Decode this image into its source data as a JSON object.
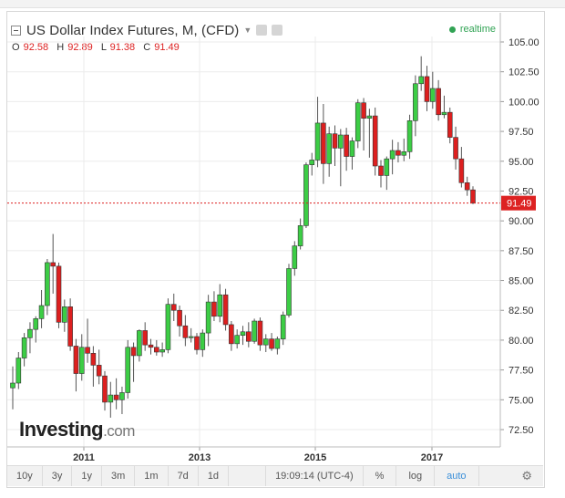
{
  "header": {
    "title": "US Dollar Index Futures, M, (CFD)",
    "realtime_label": "realtime"
  },
  "ohlc": {
    "o_label": "O",
    "o": "92.58",
    "h_label": "H",
    "h": "92.89",
    "l_label": "L",
    "l": "91.38",
    "c_label": "C",
    "c": "91.49"
  },
  "logo": {
    "main": "Investing",
    "suffix": ".com"
  },
  "chart_data": {
    "type": "candlestick",
    "y_ticks": [
      "105.00",
      "102.50",
      "100.00",
      "97.50",
      "95.00",
      "92.50",
      "90.00",
      "87.50",
      "85.00",
      "82.50",
      "80.00",
      "77.50",
      "75.00",
      "72.50"
    ],
    "ylim": [
      71.5,
      106.5
    ],
    "x_ticks": [
      "2011",
      "2013",
      "2015",
      "2017"
    ],
    "last_price_label": "91.49",
    "last_price": 91.49,
    "colors": {
      "up": "#3ccd45",
      "down": "#dd1f1f"
    },
    "candles": [
      [
        76.0,
        77.8,
        74.2,
        76.4
      ],
      [
        76.4,
        79.0,
        75.9,
        78.5
      ],
      [
        78.5,
        80.6,
        77.8,
        80.2
      ],
      [
        80.2,
        81.5,
        78.9,
        80.9
      ],
      [
        80.9,
        82.0,
        79.8,
        81.8
      ],
      [
        81.8,
        84.2,
        81.0,
        82.9
      ],
      [
        82.9,
        86.8,
        82.1,
        86.5
      ],
      [
        86.5,
        88.9,
        83.9,
        86.2
      ],
      [
        86.2,
        86.5,
        81.0,
        81.5
      ],
      [
        81.5,
        83.4,
        80.7,
        82.8
      ],
      [
        82.8,
        83.5,
        79.1,
        79.5
      ],
      [
        79.5,
        80.1,
        75.7,
        77.2
      ],
      [
        77.2,
        80.5,
        76.6,
        79.4
      ],
      [
        79.4,
        81.8,
        78.1,
        78.9
      ],
      [
        78.9,
        79.5,
        76.1,
        77.9
      ],
      [
        77.9,
        79.2,
        76.3,
        77.0
      ],
      [
        77.0,
        77.4,
        74.1,
        74.8
      ],
      [
        74.8,
        76.5,
        73.5,
        75.4
      ],
      [
        75.4,
        76.8,
        74.2,
        75.0
      ],
      [
        75.0,
        76.1,
        73.8,
        75.6
      ],
      [
        75.6,
        80.0,
        75.1,
        79.4
      ],
      [
        79.4,
        79.8,
        76.5,
        78.7
      ],
      [
        78.7,
        80.9,
        78.2,
        80.8
      ],
      [
        80.8,
        81.5,
        79.1,
        79.6
      ],
      [
        79.6,
        80.1,
        78.8,
        79.4
      ],
      [
        79.4,
        80.0,
        78.7,
        79.0
      ],
      [
        79.0,
        79.8,
        78.6,
        79.2
      ],
      [
        79.2,
        83.5,
        78.9,
        83.0
      ],
      [
        83.0,
        83.9,
        81.6,
        82.5
      ],
      [
        82.5,
        82.9,
        80.3,
        81.2
      ],
      [
        81.2,
        82.1,
        79.5,
        80.2
      ],
      [
        80.2,
        81.0,
        79.8,
        80.3
      ],
      [
        80.3,
        80.6,
        78.8,
        79.2
      ],
      [
        79.2,
        80.9,
        78.6,
        80.6
      ],
      [
        80.6,
        83.8,
        79.5,
        83.2
      ],
      [
        83.2,
        84.1,
        81.6,
        82.0
      ],
      [
        82.0,
        84.7,
        81.5,
        83.8
      ],
      [
        83.8,
        84.3,
        80.8,
        81.3
      ],
      [
        81.3,
        81.6,
        79.1,
        79.7
      ],
      [
        79.7,
        80.9,
        79.3,
        80.4
      ],
      [
        80.4,
        81.2,
        79.6,
        80.7
      ],
      [
        80.7,
        81.5,
        79.4,
        79.9
      ],
      [
        79.9,
        81.8,
        79.7,
        81.6
      ],
      [
        81.6,
        81.9,
        79.1,
        79.6
      ],
      [
        79.6,
        80.5,
        79.0,
        80.1
      ],
      [
        80.1,
        80.6,
        79.1,
        79.3
      ],
      [
        79.3,
        80.3,
        78.8,
        80.1
      ],
      [
        80.1,
        82.4,
        79.6,
        82.1
      ],
      [
        82.1,
        86.4,
        81.9,
        86.0
      ],
      [
        86.0,
        88.3,
        85.4,
        87.9
      ],
      [
        87.9,
        90.2,
        87.6,
        89.6
      ],
      [
        89.6,
        94.9,
        89.4,
        94.7
      ],
      [
        94.7,
        95.7,
        93.8,
        95.1
      ],
      [
        95.1,
        100.4,
        94.5,
        98.2
      ],
      [
        98.2,
        99.8,
        93.1,
        94.8
      ],
      [
        94.8,
        97.9,
        93.7,
        97.3
      ],
      [
        97.3,
        98.0,
        94.6,
        96.1
      ],
      [
        96.1,
        97.7,
        92.9,
        97.2
      ],
      [
        97.2,
        97.8,
        94.2,
        95.4
      ],
      [
        95.4,
        97.0,
        94.3,
        96.7
      ],
      [
        96.7,
        100.2,
        96.1,
        99.9
      ],
      [
        99.9,
        100.3,
        95.9,
        98.6
      ],
      [
        98.6,
        99.4,
        95.3,
        98.8
      ],
      [
        98.8,
        99.5,
        93.8,
        94.6
      ],
      [
        94.6,
        95.1,
        92.8,
        93.8
      ],
      [
        93.8,
        95.4,
        92.6,
        95.2
      ],
      [
        95.2,
        96.8,
        93.9,
        95.9
      ],
      [
        95.9,
        96.6,
        94.9,
        95.5
      ],
      [
        95.5,
        96.9,
        95.0,
        95.8
      ],
      [
        95.8,
        98.9,
        95.2,
        98.4
      ],
      [
        98.4,
        102.2,
        97.1,
        101.5
      ],
      [
        101.5,
        103.8,
        100.9,
        102.1
      ],
      [
        102.1,
        103.0,
        99.2,
        100.0
      ],
      [
        100.0,
        102.5,
        99.4,
        101.1
      ],
      [
        101.1,
        101.8,
        98.4,
        98.9
      ],
      [
        98.9,
        100.5,
        98.6,
        99.1
      ],
      [
        99.1,
        99.5,
        96.5,
        97.0
      ],
      [
        97.0,
        97.9,
        94.3,
        95.2
      ],
      [
        95.2,
        96.2,
        92.8,
        93.2
      ],
      [
        93.2,
        93.7,
        92.1,
        92.6
      ],
      [
        92.6,
        92.9,
        91.4,
        91.5
      ]
    ]
  },
  "toolbar": {
    "ranges": [
      "10y",
      "3y",
      "1y",
      "3m",
      "1m",
      "7d",
      "1d"
    ],
    "time": "19:09:14 (UTC-4)",
    "pct": "%",
    "log": "log",
    "auto": "auto"
  }
}
